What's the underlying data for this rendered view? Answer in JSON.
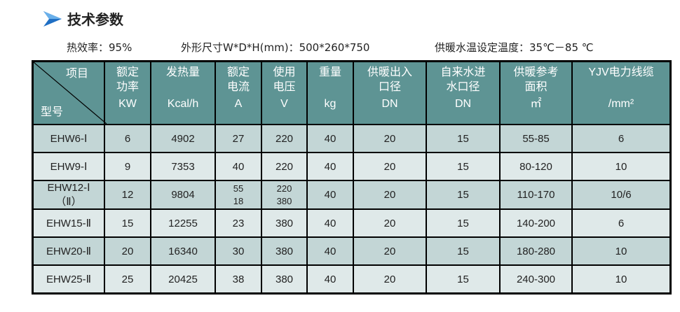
{
  "title": "技术参数",
  "title_icon": "blue-arrow-icon",
  "specs": {
    "efficiency": "热效率：95%",
    "dimensions": "外形尺寸W*D*H(mm)：500*260*750",
    "temp": "供暖水温设定温度：35℃－85 ℃"
  },
  "colors": {
    "header": "#5e9494",
    "row_dark": "#c3d6d6",
    "row_light": "#dfe9e9"
  },
  "table": {
    "corner_top": "项目",
    "corner_bottom": "型号",
    "headers": [
      {
        "label": "额定\n功率",
        "unit": "KW"
      },
      {
        "label": "发热量",
        "unit": "Kcal/h"
      },
      {
        "label": "额定\n电流",
        "unit": "A"
      },
      {
        "label": "使用\n电压",
        "unit": "V"
      },
      {
        "label": "重量",
        "unit": "kg"
      },
      {
        "label": "供暖出入\n口径",
        "unit": "DN"
      },
      {
        "label": "自来水进\n水口径",
        "unit": "DN"
      },
      {
        "label": "供暖参考\n面积",
        "unit": "㎡"
      },
      {
        "label": "YJV电力线缆",
        "unit": "/mm²"
      }
    ],
    "rows": [
      [
        "EHW6-Ⅰ",
        "6",
        "4902",
        "27",
        "220",
        "40",
        "20",
        "15",
        "55-85",
        "6"
      ],
      [
        "EHW9-Ⅰ",
        "9",
        "7353",
        "40",
        "220",
        "40",
        "20",
        "15",
        "80-120",
        "10"
      ],
      [
        "EHW12-Ⅰ\n（Ⅱ）",
        "12",
        "9804",
        "55\n18",
        "220\n380",
        "40",
        "20",
        "15",
        "110-170",
        "10/6"
      ],
      [
        "EHW15-Ⅱ",
        "15",
        "12255",
        "23",
        "380",
        "40",
        "20",
        "15",
        "140-200",
        "6"
      ],
      [
        "EHW20-Ⅱ",
        "20",
        "16340",
        "30",
        "380",
        "40",
        "20",
        "15",
        "180-280",
        "10"
      ],
      [
        "EHW25-Ⅱ",
        "25",
        "20425",
        "38",
        "380",
        "40",
        "20",
        "15",
        "240-300",
        "10"
      ]
    ]
  }
}
